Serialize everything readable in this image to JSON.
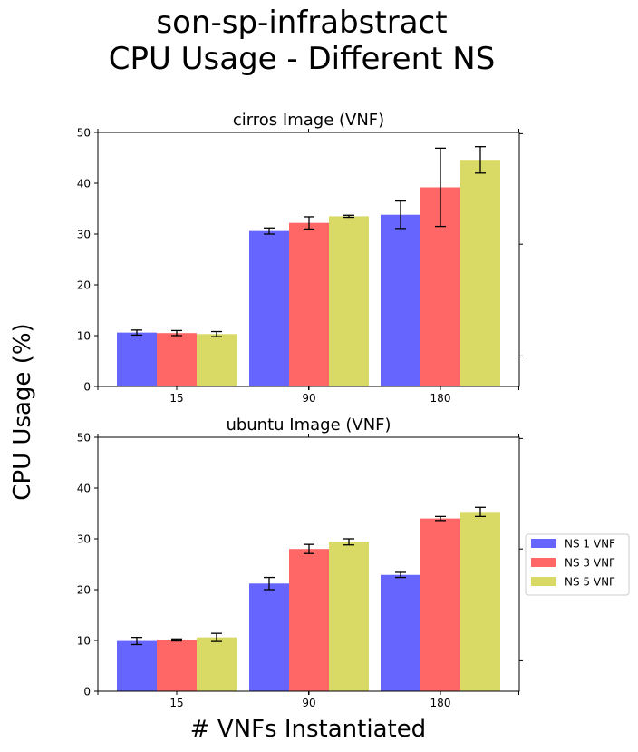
{
  "figure": {
    "suptitle_line1": "son-sp-infrabstract",
    "suptitle_line2": "CPU Usage - Different NS",
    "ylabel": "CPU Usage (%)",
    "xlabel": "# VNFs Instantiated"
  },
  "legend": {
    "placement": "right",
    "entries": [
      {
        "label": "NS 1 VNF",
        "color": "#6666ff"
      },
      {
        "label": "NS 3 VNF",
        "color": "#ff6666"
      },
      {
        "label": "NS 5 VNF",
        "color": "#d9d966"
      }
    ]
  },
  "chart_data": [
    {
      "type": "bar",
      "title": "cirros Image (VNF)",
      "categories": [
        "15",
        "90",
        "180"
      ],
      "ylim": [
        0,
        50
      ],
      "yticks": [
        "0",
        "10",
        "20",
        "30",
        "40",
        "50"
      ],
      "series": [
        {
          "name": "NS 1 VNF",
          "color": "#6666ff",
          "values": [
            10.6,
            30.6,
            33.8
          ],
          "errors": [
            0.5,
            0.6,
            2.7
          ]
        },
        {
          "name": "NS 3 VNF",
          "color": "#ff6666",
          "values": [
            10.5,
            32.2,
            39.2
          ],
          "errors": [
            0.5,
            1.2,
            7.7
          ]
        },
        {
          "name": "NS 5 VNF",
          "color": "#d9d966",
          "values": [
            10.3,
            33.5,
            44.6
          ],
          "errors": [
            0.5,
            0.2,
            2.6
          ]
        }
      ]
    },
    {
      "type": "bar",
      "title": "ubuntu Image (VNF)",
      "categories": [
        "15",
        "90",
        "180"
      ],
      "ylim": [
        0,
        50
      ],
      "yticks": [
        "0",
        "10",
        "20",
        "30",
        "40",
        "50"
      ],
      "series": [
        {
          "name": "NS 1 VNF",
          "color": "#6666ff",
          "values": [
            9.9,
            21.2,
            22.9
          ],
          "errors": [
            0.7,
            1.2,
            0.5
          ]
        },
        {
          "name": "NS 3 VNF",
          "color": "#ff6666",
          "values": [
            10.1,
            28.0,
            34.0
          ],
          "errors": [
            0.2,
            0.9,
            0.4
          ]
        },
        {
          "name": "NS 5 VNF",
          "color": "#d9d966",
          "values": [
            10.6,
            29.4,
            35.3
          ],
          "errors": [
            0.8,
            0.6,
            0.9
          ]
        }
      ]
    }
  ]
}
